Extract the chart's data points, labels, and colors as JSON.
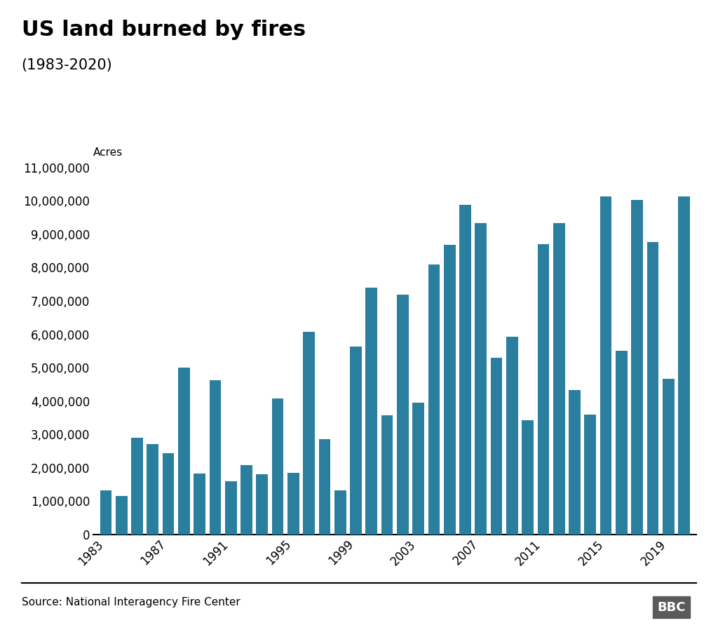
{
  "title": "US land burned by fires",
  "subtitle": "(1983-2020)",
  "ylabel": "Acres",
  "source": "Source: National Interagency Fire Center",
  "bar_color": "#2a7f9e",
  "background_color": "#ffffff",
  "years": [
    1983,
    1984,
    1985,
    1986,
    1987,
    1988,
    1989,
    1990,
    1991,
    1992,
    1993,
    1994,
    1995,
    1996,
    1997,
    1998,
    1999,
    2000,
    2001,
    2002,
    2003,
    2004,
    2005,
    2006,
    2007,
    2008,
    2009,
    2010,
    2011,
    2012,
    2013,
    2014,
    2015,
    2016,
    2017,
    2018,
    2019,
    2020
  ],
  "values": [
    1323666,
    1148409,
    2896147,
    2719162,
    2447296,
    5009290,
    1827310,
    4621621,
    1592843,
    2069929,
    1797574,
    4073579,
    1840546,
    6065998,
    2856959,
    1329704,
    5626093,
    7393493,
    3570911,
    7184712,
    3960842,
    8097880,
    8689389,
    9873745,
    9328045,
    5292468,
    5921786,
    3422724,
    8711367,
    9326238,
    4319546,
    3595613,
    10125149,
    5509995,
    10026086,
    8767492,
    4664364,
    10122336
  ],
  "ylim": [
    0,
    11000000
  ],
  "yticks": [
    0,
    1000000,
    2000000,
    3000000,
    4000000,
    5000000,
    6000000,
    7000000,
    8000000,
    9000000,
    10000000,
    11000000
  ],
  "xtick_years": [
    1983,
    1987,
    1991,
    1995,
    1999,
    2003,
    2007,
    2011,
    2015,
    2019
  ],
  "title_fontsize": 22,
  "subtitle_fontsize": 15,
  "ylabel_fontsize": 11,
  "tick_fontsize": 12,
  "source_fontsize": 11,
  "bbc_fontsize": 13
}
